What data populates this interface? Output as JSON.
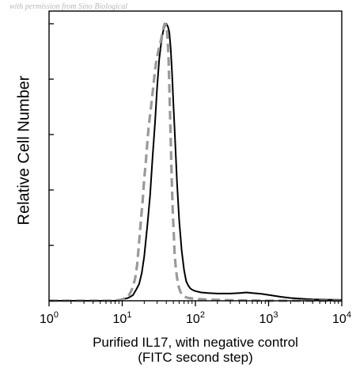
{
  "watermark": "with permission from Sino Biological",
  "chart_data": {
    "type": "line",
    "title": "",
    "ylabel": "Relative Cell Number",
    "xlabel_line1": "Purified IL17, with negative control",
    "xlabel_line2": "(FITC second step)",
    "xscale": "log",
    "xlim": [
      1,
      10000
    ],
    "ylim": [
      0,
      100
    ],
    "x_ticks": [
      {
        "base": "10",
        "exp": "0",
        "value": 1
      },
      {
        "base": "10",
        "exp": "1",
        "value": 10
      },
      {
        "base": "10",
        "exp": "2",
        "value": 100
      },
      {
        "base": "10",
        "exp": "3",
        "value": 1000
      },
      {
        "base": "10",
        "exp": "4",
        "value": 10000
      }
    ],
    "y_ticks": [
      0,
      20,
      40,
      60,
      80,
      100
    ],
    "grid": false,
    "series": [
      {
        "style": "solid",
        "color": "#000000",
        "x": [
          1,
          8,
          10,
          12,
          14,
          15.5,
          17,
          18.5,
          20,
          22,
          24,
          26,
          28,
          30,
          32,
          34,
          36,
          38,
          40,
          42,
          44,
          46,
          48,
          50,
          53,
          56,
          60,
          65,
          70,
          75,
          80,
          85,
          90,
          100,
          120,
          150,
          200,
          300,
          400,
          500,
          600,
          800,
          1000,
          1500,
          2000,
          3000,
          4000,
          6000,
          10000
        ],
        "y": [
          0,
          0,
          0.5,
          1,
          2,
          4,
          6,
          10,
          16,
          27,
          38,
          52,
          64,
          77,
          87,
          93,
          97,
          99,
          100,
          99,
          97,
          91,
          82,
          71,
          57,
          43,
          29,
          18,
          11,
          7,
          5.5,
          4.5,
          4,
          3.5,
          3,
          2.8,
          2.6,
          2.6,
          2.8,
          3,
          2.8,
          2.5,
          2.1,
          1.4,
          1,
          0.7,
          0.5,
          0.4,
          0.3
        ]
      },
      {
        "style": "dashed",
        "color": "#9a9a9a",
        "x": [
          1,
          8,
          10,
          12,
          13,
          14,
          15,
          16,
          17,
          18,
          19,
          20,
          21,
          22,
          23,
          24,
          25,
          26,
          27,
          28,
          29,
          30,
          31,
          32,
          33,
          34,
          35,
          36,
          37,
          38,
          39,
          40,
          41,
          42,
          43,
          44,
          45,
          46,
          47,
          48,
          49,
          50,
          51,
          52,
          54,
          56,
          58,
          60,
          63,
          66,
          70,
          80,
          100,
          150,
          200,
          300,
          500,
          1000,
          10000
        ],
        "y": [
          0,
          0,
          0.5,
          1.5,
          3,
          5,
          8,
          13,
          21,
          29,
          36,
          44,
          50,
          57,
          63,
          67,
          71,
          75,
          79,
          83,
          86,
          88,
          90,
          91.5,
          93,
          94.5,
          96,
          97.5,
          99,
          100,
          99.8,
          99,
          97,
          93,
          87,
          78,
          68,
          58,
          48,
          40,
          33,
          27,
          22,
          17,
          12,
          8.5,
          6,
          4.5,
          3,
          2.2,
          1.5,
          1,
          0.7,
          0.4,
          0.3,
          0.2,
          0.1,
          0,
          0
        ]
      }
    ]
  }
}
